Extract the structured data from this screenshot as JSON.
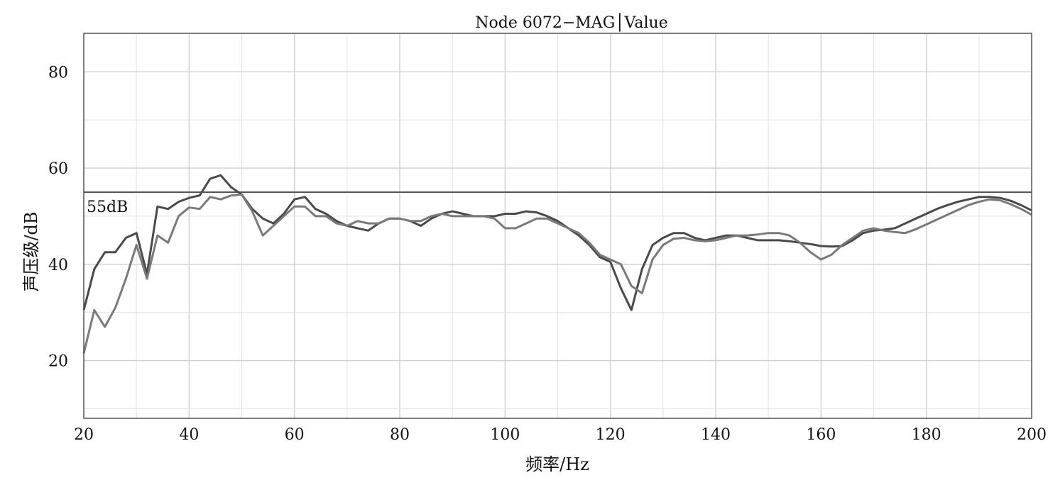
{
  "chart_data": {
    "type": "line",
    "title": "Node 6072−MAG│Value",
    "xlabel": "频率/Hz",
    "ylabel": "声压级/dB",
    "xlim": [
      20,
      200
    ],
    "ylim": [
      8,
      88
    ],
    "x_ticks": [
      20,
      40,
      60,
      80,
      100,
      120,
      140,
      160,
      180,
      200
    ],
    "x_tick_labels": [
      "20",
      "40",
      "60",
      "80",
      "100",
      "120",
      "140",
      "160",
      "180",
      "200"
    ],
    "y_ticks": [
      20,
      40,
      60,
      80
    ],
    "y_tick_labels": [
      "20",
      "40",
      "60",
      "80"
    ],
    "grid": true,
    "reference_line": {
      "value": 55,
      "label": "55dB"
    },
    "series": [
      {
        "color": "#4a4a4a",
        "points": [
          [
            20,
            30.5
          ],
          [
            22,
            39
          ],
          [
            24,
            42.5
          ],
          [
            26,
            42.5
          ],
          [
            28,
            45.5
          ],
          [
            30,
            46.5
          ],
          [
            32,
            38
          ],
          [
            34,
            52
          ],
          [
            36,
            51.5
          ],
          [
            38,
            53
          ],
          [
            40,
            53.8
          ],
          [
            42,
            54.3
          ],
          [
            44,
            57.8
          ],
          [
            46,
            58.5
          ],
          [
            48,
            56
          ],
          [
            50,
            54.5
          ],
          [
            52,
            51.5
          ],
          [
            54,
            49.5
          ],
          [
            56,
            48.5
          ],
          [
            58,
            50.5
          ],
          [
            60,
            53.5
          ],
          [
            62,
            54
          ],
          [
            64,
            51.5
          ],
          [
            66,
            50.5
          ],
          [
            68,
            49
          ],
          [
            70,
            48
          ],
          [
            72,
            47.5
          ],
          [
            74,
            47
          ],
          [
            76,
            48.5
          ],
          [
            78,
            49.5
          ],
          [
            80,
            49.5
          ],
          [
            82,
            49
          ],
          [
            84,
            48
          ],
          [
            86,
            49.5
          ],
          [
            88,
            50.5
          ],
          [
            90,
            51
          ],
          [
            92,
            50.5
          ],
          [
            94,
            50
          ],
          [
            96,
            50
          ],
          [
            98,
            50
          ],
          [
            100,
            50.5
          ],
          [
            102,
            50.5
          ],
          [
            104,
            51
          ],
          [
            106,
            50.8
          ],
          [
            108,
            50
          ],
          [
            110,
            49
          ],
          [
            112,
            47.5
          ],
          [
            114,
            46
          ],
          [
            116,
            44
          ],
          [
            118,
            41.5
          ],
          [
            120,
            40.5
          ],
          [
            122,
            35
          ],
          [
            124,
            30.5
          ],
          [
            126,
            39
          ],
          [
            128,
            44
          ],
          [
            130,
            45.5
          ],
          [
            132,
            46.5
          ],
          [
            134,
            46.5
          ],
          [
            136,
            45.5
          ],
          [
            138,
            45
          ],
          [
            140,
            45.5
          ],
          [
            142,
            46
          ],
          [
            144,
            46
          ],
          [
            146,
            45.5
          ],
          [
            148,
            45
          ],
          [
            150,
            45
          ],
          [
            152,
            45
          ],
          [
            154,
            44.8
          ],
          [
            156,
            44.5
          ],
          [
            158,
            44.2
          ],
          [
            160,
            43.8
          ],
          [
            162,
            43.7
          ],
          [
            164,
            43.8
          ],
          [
            166,
            45
          ],
          [
            168,
            46.5
          ],
          [
            170,
            47
          ],
          [
            172,
            47.2
          ],
          [
            174,
            47.5
          ],
          [
            176,
            48.5
          ],
          [
            178,
            49.5
          ],
          [
            180,
            50.5
          ],
          [
            182,
            51.5
          ],
          [
            184,
            52.3
          ],
          [
            186,
            53
          ],
          [
            188,
            53.5
          ],
          [
            190,
            54
          ],
          [
            192,
            54
          ],
          [
            194,
            53.8
          ],
          [
            196,
            53.2
          ],
          [
            198,
            52.3
          ],
          [
            200,
            51.2
          ]
        ]
      },
      {
        "color": "#7a7a7a",
        "points": [
          [
            20,
            21.5
          ],
          [
            22,
            30.5
          ],
          [
            24,
            27
          ],
          [
            26,
            31
          ],
          [
            28,
            37
          ],
          [
            30,
            44
          ],
          [
            32,
            37
          ],
          [
            34,
            46
          ],
          [
            36,
            44.5
          ],
          [
            38,
            50
          ],
          [
            40,
            51.8
          ],
          [
            42,
            51.5
          ],
          [
            44,
            54
          ],
          [
            46,
            53.5
          ],
          [
            48,
            54.3
          ],
          [
            50,
            54.5
          ],
          [
            52,
            51
          ],
          [
            54,
            46
          ],
          [
            56,
            48
          ],
          [
            58,
            50
          ],
          [
            60,
            52
          ],
          [
            62,
            52
          ],
          [
            64,
            50
          ],
          [
            66,
            50
          ],
          [
            68,
            48.5
          ],
          [
            70,
            48
          ],
          [
            72,
            49
          ],
          [
            74,
            48.5
          ],
          [
            76,
            48.5
          ],
          [
            78,
            49.5
          ],
          [
            80,
            49.5
          ],
          [
            82,
            49
          ],
          [
            84,
            49
          ],
          [
            86,
            50
          ],
          [
            88,
            50.5
          ],
          [
            90,
            50
          ],
          [
            92,
            50
          ],
          [
            94,
            50
          ],
          [
            96,
            50
          ],
          [
            98,
            49.5
          ],
          [
            100,
            47.5
          ],
          [
            102,
            47.5
          ],
          [
            104,
            48.5
          ],
          [
            106,
            49.5
          ],
          [
            108,
            49.5
          ],
          [
            110,
            48.5
          ],
          [
            112,
            47.5
          ],
          [
            114,
            46.5
          ],
          [
            116,
            44.5
          ],
          [
            118,
            42
          ],
          [
            120,
            41
          ],
          [
            122,
            40
          ],
          [
            124,
            35.5
          ],
          [
            126,
            34
          ],
          [
            128,
            41
          ],
          [
            130,
            44
          ],
          [
            132,
            45.3
          ],
          [
            134,
            45.5
          ],
          [
            136,
            45
          ],
          [
            138,
            44.8
          ],
          [
            140,
            45
          ],
          [
            142,
            45.5
          ],
          [
            144,
            46
          ],
          [
            146,
            46
          ],
          [
            148,
            46.2
          ],
          [
            150,
            46.5
          ],
          [
            152,
            46.5
          ],
          [
            154,
            46
          ],
          [
            156,
            44.5
          ],
          [
            158,
            42.5
          ],
          [
            160,
            41
          ],
          [
            162,
            42
          ],
          [
            164,
            44
          ],
          [
            166,
            45.5
          ],
          [
            168,
            47
          ],
          [
            170,
            47.5
          ],
          [
            172,
            47
          ],
          [
            174,
            46.7
          ],
          [
            176,
            46.5
          ],
          [
            178,
            47.3
          ],
          [
            180,
            48.3
          ],
          [
            182,
            49.3
          ],
          [
            184,
            50.3
          ],
          [
            186,
            51.3
          ],
          [
            188,
            52.3
          ],
          [
            190,
            53
          ],
          [
            192,
            53.5
          ],
          [
            194,
            53.3
          ],
          [
            196,
            52.5
          ],
          [
            198,
            51.5
          ],
          [
            200,
            50.3
          ]
        ]
      }
    ]
  }
}
